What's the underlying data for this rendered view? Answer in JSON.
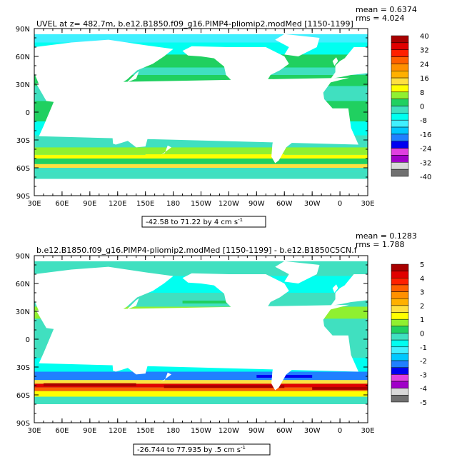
{
  "colors": {
    "scale": [
      "#707070",
      "#d8d8d8",
      "#a000c8",
      "#e040e0",
      "#0000f0",
      "#2080ff",
      "#00c8ff",
      "#40f0ff",
      "#00fff0",
      "#40e0c0",
      "#20d060",
      "#90f030",
      "#ffff00",
      "#ffe040",
      "#ffb000",
      "#ff9000",
      "#ff6000",
      "#ff2000",
      "#e00000",
      "#a80000"
    ],
    "land": "#ffffff"
  },
  "chart_data": [
    {
      "type": "heatmap",
      "title": "UVEL at z= 482.7m, b.e12.B1850.f09_g16.PIMP4-pliomip2.modMed [1150-1199]",
      "stats": [
        "mean = 0.6374",
        "rms = 4.024"
      ],
      "range_label": "-42.58 to 71.22 by 4 cm s",
      "range_exponent": "-1",
      "x_ticks": [
        "30E",
        "60E",
        "90E",
        "120E",
        "150E",
        "180",
        "150W",
        "120W",
        "90W",
        "60W",
        "30W",
        "0",
        "30E"
      ],
      "y_ticks": [
        "90N",
        "60N",
        "30N",
        "0",
        "30S",
        "60S",
        "90S"
      ],
      "colorbar_labels": [
        "40",
        "32",
        "24",
        "16",
        "8",
        "0",
        "-8",
        "-16",
        "-24",
        "-32",
        "-40"
      ],
      "colorbar_range": [
        -40,
        40
      ],
      "xlim": [
        "30E",
        "30E"
      ],
      "ylim": [
        "90S",
        "90N"
      ]
    },
    {
      "type": "heatmap",
      "title": "b.e12.B1850.f09_g16.PIMP4-pliomip2.modMed [1150-1199] - b.e12.B1850C5CN.f",
      "stats": [
        "mean = 0.1283",
        "rms = 1.788"
      ],
      "range_label": "-26.744 to 77.935 by .5 cm s",
      "range_exponent": "-1",
      "x_ticks": [
        "30E",
        "60E",
        "90E",
        "120E",
        "150E",
        "180",
        "150W",
        "120W",
        "90W",
        "60W",
        "30W",
        "0",
        "30E"
      ],
      "y_ticks": [
        "90N",
        "60N",
        "30N",
        "0",
        "30S",
        "60S",
        "90S"
      ],
      "colorbar_labels": [
        "5",
        "4",
        "3",
        "2",
        "1",
        "0",
        "-1",
        "-2",
        "-3",
        "-4",
        "-5"
      ],
      "colorbar_range": [
        -5,
        5
      ],
      "xlim": [
        "30E",
        "30E"
      ],
      "ylim": [
        "90S",
        "90N"
      ]
    }
  ]
}
